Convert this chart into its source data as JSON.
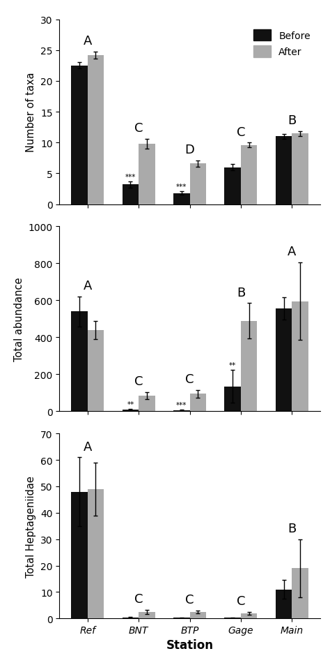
{
  "stations": [
    "Ref",
    "BNT",
    "BTP",
    "Gage",
    "Main"
  ],
  "panel1": {
    "ylabel": "Number of taxa",
    "ylim": [
      0,
      30
    ],
    "yticks": [
      0,
      5,
      10,
      15,
      20,
      25,
      30
    ],
    "before": [
      22.5,
      3.2,
      1.8,
      6.0,
      11.0
    ],
    "after": [
      24.2,
      9.8,
      6.6,
      9.6,
      11.5
    ],
    "before_err": [
      0.5,
      0.5,
      0.3,
      0.5,
      0.4
    ],
    "after_err": [
      0.6,
      0.8,
      0.5,
      0.4,
      0.4
    ],
    "letters": [
      "A",
      "C",
      "D",
      "C",
      "B"
    ],
    "sig_before": [
      "",
      "***",
      "***",
      "",
      ""
    ],
    "sig_after": [
      "",
      "",
      "",
      "",
      ""
    ]
  },
  "panel2": {
    "ylabel": "Total abundance",
    "ylim": [
      0,
      1000
    ],
    "yticks": [
      0,
      200,
      400,
      600,
      800,
      1000
    ],
    "before": [
      540,
      8,
      5,
      135,
      555
    ],
    "after": [
      440,
      85,
      95,
      490,
      595
    ],
    "before_err": [
      80,
      5,
      3,
      90,
      60
    ],
    "after_err": [
      50,
      20,
      20,
      95,
      210
    ],
    "letters": [
      "A",
      "C",
      "C",
      "B",
      "A"
    ],
    "sig_before": [
      "",
      "**",
      "***",
      "**",
      ""
    ],
    "sig_after": [
      "",
      "",
      "",
      "",
      ""
    ]
  },
  "panel3": {
    "ylabel": "Total Heptageniidae",
    "ylim": [
      0,
      70
    ],
    "yticks": [
      0,
      10,
      20,
      30,
      40,
      50,
      60,
      70
    ],
    "before": [
      48,
      0.4,
      0.2,
      0.3,
      11.0
    ],
    "after": [
      49,
      2.5,
      2.4,
      2.0,
      19.0
    ],
    "before_err": [
      13,
      0.3,
      0.1,
      0.15,
      3.5
    ],
    "after_err": [
      10,
      0.8,
      0.6,
      0.5,
      11.0
    ],
    "letters": [
      "A",
      "C",
      "C",
      "C",
      "B"
    ],
    "sig_before": [
      "",
      "",
      "",
      "",
      ""
    ],
    "sig_after": [
      "",
      "",
      "",
      "",
      ""
    ]
  },
  "bar_width": 0.32,
  "before_color": "#111111",
  "after_color": "#aaaaaa",
  "xlabel": "Station",
  "legend_labels": [
    "Before",
    "After"
  ]
}
